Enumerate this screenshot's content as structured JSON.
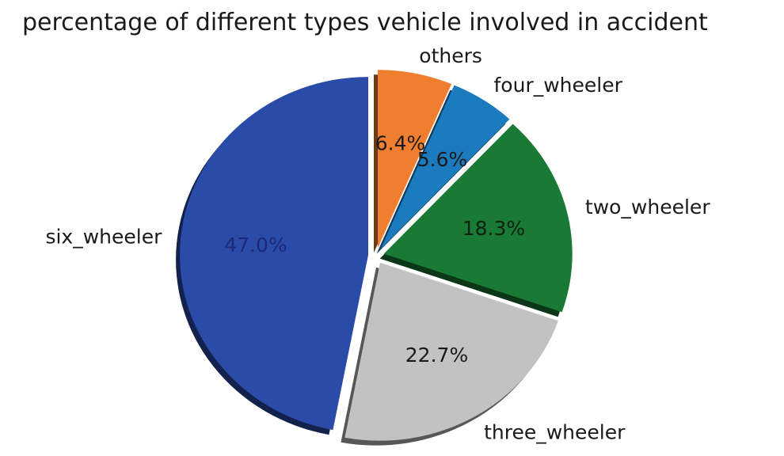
{
  "chart_data": {
    "type": "pie",
    "title": "percentage of different types vehicle involved in accident",
    "categories": [
      "others",
      "four_wheeler",
      "two_wheeler",
      "three_wheeler",
      "six_wheeler"
    ],
    "values": [
      6.4,
      5.6,
      18.3,
      22.7,
      47.0
    ],
    "pct_labels": [
      "6.4%",
      "5.6%",
      "18.3%",
      "22.7%",
      "47.0%"
    ],
    "colors": [
      "#ef7e30",
      "#1c7abf",
      "#187a35",
      "#c1c2c1",
      "#2b4ba8"
    ],
    "pct_label_colors": [
      "#1a1a1a",
      "#1a1a1a",
      "#0f1f10",
      "#1a1a1a",
      "#1e2878"
    ],
    "start_angle": "12 o'clock",
    "direction": "clockwise",
    "exploded": true,
    "shadow": true,
    "legend_position": "none",
    "background": "#ffffff"
  }
}
